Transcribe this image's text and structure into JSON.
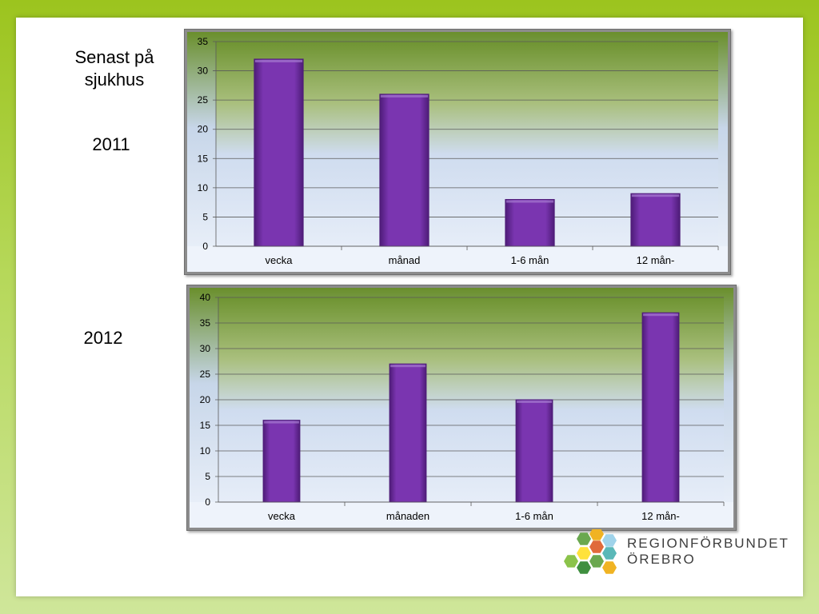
{
  "slide": {
    "heading": "Senast på sjukhus",
    "label_2011": "2011",
    "label_2012": "2012"
  },
  "logo": {
    "line1": "REGIONFÖRBUNDET",
    "line2": "ÖREBRO"
  },
  "colors": {
    "bar": "#7a35b0",
    "bar_edge": "#4e1c78",
    "plot_top": "#6f9432",
    "plot_mid": "#cfdcef",
    "plot_bottom": "#e6edf8"
  },
  "chart_data": [
    {
      "type": "bar",
      "categories": [
        "vecka",
        "månad",
        "1-6 mån",
        "12 mån-"
      ],
      "values": [
        32,
        26,
        8,
        9
      ],
      "ylim": [
        0,
        35
      ],
      "yticks": [
        0,
        5,
        10,
        15,
        20,
        25,
        30,
        35
      ],
      "grid": true
    },
    {
      "type": "bar",
      "categories": [
        "vecka",
        "månaden",
        "1-6 mån",
        "12 mån-"
      ],
      "values": [
        16,
        27,
        20,
        37
      ],
      "ylim": [
        0,
        40
      ],
      "yticks": [
        0,
        5,
        10,
        15,
        20,
        25,
        30,
        35,
        40
      ],
      "grid": true
    }
  ]
}
